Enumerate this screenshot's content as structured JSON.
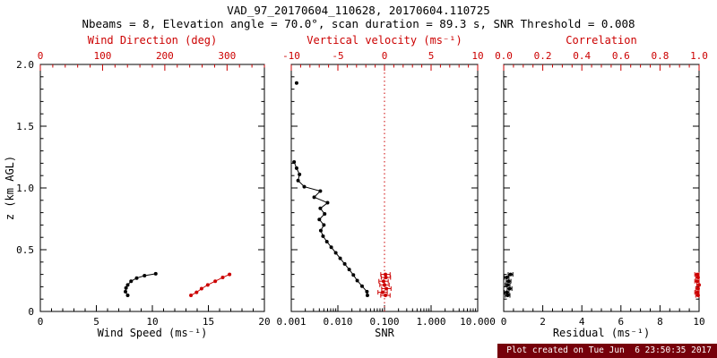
{
  "header": {
    "title": "VAD_97_20170604_110628, 20170604.110725",
    "subtitle": "Nbeams = 8, Elevation angle = 70.0°, scan duration = 89.3 s, SNR Threshold = 0.008"
  },
  "ylabel": "z (km AGL)",
  "footer": {
    "created": "Plot created on Tue Jun  6 23:50:35 2017"
  },
  "colors": {
    "frame": "#000000",
    "accent": "#cc0000",
    "footer_bg": "#76000a",
    "footer_text": "#ffffff"
  },
  "chart_data": [
    {
      "id": "wind",
      "type": "scatter",
      "left_axis": {
        "label": "z (km AGL)",
        "range": [
          0,
          2
        ],
        "ticks": [
          0,
          0.5,
          1.0,
          1.5,
          2.0
        ],
        "tick_labels": [
          "0",
          "0.5",
          "1.0",
          "1.5",
          "2.0"
        ],
        "show_labels": true,
        "minor_step": 0.1
      },
      "bottom_axis": {
        "label": "Wind Speed (ms⁻¹)",
        "range": [
          0,
          20
        ],
        "ticks": [
          0,
          5,
          10,
          15,
          20
        ],
        "tick_labels": [
          "0",
          "5",
          "10",
          "15",
          "20"
        ],
        "color": "#000000",
        "minor_step": 1
      },
      "top_axis": {
        "label": "Wind Direction (deg)",
        "range": [
          0,
          360
        ],
        "ticks": [
          0,
          100,
          200,
          300
        ],
        "tick_labels": [
          "0",
          "100",
          "200",
          "300"
        ],
        "color": "#cc0000",
        "minor_step": 20
      },
      "series": [
        {
          "name": "wind-speed",
          "axis": "bottom",
          "color": "#000000",
          "line": true,
          "points": [
            [
              7.8,
              0.13
            ],
            [
              7.6,
              0.16
            ],
            [
              7.65,
              0.19
            ],
            [
              7.8,
              0.215
            ],
            [
              8.1,
              0.245
            ],
            [
              8.6,
              0.27
            ],
            [
              9.3,
              0.29
            ],
            [
              10.3,
              0.305
            ]
          ]
        },
        {
          "name": "wind-direction",
          "axis": "top",
          "color": "#cc0000",
          "line": true,
          "points": [
            [
              242,
              0.13
            ],
            [
              251,
              0.155
            ],
            [
              259,
              0.185
            ],
            [
              269,
              0.215
            ],
            [
              281,
              0.245
            ],
            [
              293,
              0.275
            ],
            [
              304,
              0.3
            ]
          ]
        }
      ]
    },
    {
      "id": "snr",
      "type": "scatter",
      "left_axis": {
        "range": [
          0,
          2
        ],
        "ticks": [
          0,
          0.5,
          1.0,
          1.5,
          2.0
        ],
        "tick_labels": [
          "0",
          "0.5",
          "1.0",
          "1.5",
          "2.0"
        ],
        "show_labels": false,
        "minor_step": 0.1
      },
      "bottom_axis": {
        "label": "SNR",
        "range": [
          0.001,
          10
        ],
        "scale": "log",
        "ticks": [
          0.001,
          0.01,
          0.1,
          1,
          10
        ],
        "tick_labels": [
          "0.001",
          "0.010",
          "0.100",
          "1.000",
          "10.000"
        ],
        "color": "#000000"
      },
      "top_axis": {
        "label": "Vertical velocity (ms⁻¹)",
        "range": [
          -10,
          10
        ],
        "ticks": [
          -10,
          -5,
          0,
          5,
          10
        ],
        "tick_labels": [
          "-10",
          "-5",
          "0",
          "5",
          "10"
        ],
        "color": "#cc0000",
        "minor_step": 1
      },
      "ref_line": {
        "axis": "top",
        "value": 0,
        "color": "#cc0000",
        "style": "dotted"
      },
      "series": [
        {
          "name": "snr-upper-point",
          "axis": "bottom",
          "color": "#000000",
          "line": false,
          "points": [
            [
              0.0013,
              1.85
            ]
          ]
        },
        {
          "name": "snr-profile",
          "axis": "bottom",
          "color": "#000000",
          "line": true,
          "points": [
            [
              0.00115,
              1.21
            ],
            [
              0.0013,
              1.16
            ],
            [
              0.0015,
              1.11
            ],
            [
              0.0014,
              1.06
            ],
            [
              0.0019,
              1.01
            ],
            [
              0.0042,
              0.975
            ],
            [
              0.0031,
              0.925
            ],
            [
              0.006,
              0.88
            ],
            [
              0.0042,
              0.835
            ],
            [
              0.0052,
              0.79
            ],
            [
              0.004,
              0.745
            ],
            [
              0.005,
              0.7
            ],
            [
              0.0043,
              0.655
            ],
            [
              0.0048,
              0.61
            ],
            [
              0.0058,
              0.565
            ],
            [
              0.0072,
              0.52
            ],
            [
              0.009,
              0.475
            ],
            [
              0.0112,
              0.43
            ],
            [
              0.014,
              0.385
            ],
            [
              0.0175,
              0.34
            ],
            [
              0.0215,
              0.295
            ],
            [
              0.026,
              0.25
            ],
            [
              0.033,
              0.205
            ],
            [
              0.042,
              0.16
            ],
            [
              0.043,
              0.13
            ]
          ]
        },
        {
          "name": "vertical-velocity",
          "axis": "top",
          "color": "#cc0000",
          "line": false,
          "xerr": 0.5,
          "points": [
            [
              0.1,
              0.13
            ],
            [
              -0.2,
              0.155
            ],
            [
              0.2,
              0.185
            ],
            [
              0.0,
              0.215
            ],
            [
              -0.1,
              0.245
            ],
            [
              0.15,
              0.275
            ],
            [
              0.1,
              0.3
            ]
          ]
        }
      ]
    },
    {
      "id": "residual",
      "type": "scatter",
      "left_axis": {
        "range": [
          0,
          2
        ],
        "ticks": [
          0,
          0.5,
          1.0,
          1.5,
          2.0
        ],
        "tick_labels": [
          "0",
          "0.5",
          "1.0",
          "1.5",
          "2.0"
        ],
        "show_labels": false,
        "minor_step": 0.1
      },
      "bottom_axis": {
        "label": "Residual (ms⁻¹)",
        "range": [
          0,
          10
        ],
        "ticks": [
          0,
          2,
          4,
          6,
          8,
          10
        ],
        "tick_labels": [
          "0",
          "2",
          "4",
          "6",
          "8",
          "10"
        ],
        "color": "#000000",
        "minor_step": 0.5
      },
      "top_axis": {
        "label": "Correlation",
        "range": [
          0,
          1
        ],
        "ticks": [
          0,
          0.2,
          0.4,
          0.6,
          0.8,
          1.0
        ],
        "tick_labels": [
          "0.0",
          "0.2",
          "0.4",
          "0.6",
          "0.8",
          "1.0"
        ],
        "color": "#cc0000",
        "minor_step": 0.05
      },
      "series": [
        {
          "name": "residual",
          "axis": "bottom",
          "color": "#000000",
          "line": false,
          "xerr": 0.12,
          "points": [
            [
              0.2,
              0.13
            ],
            [
              0.15,
              0.155
            ],
            [
              0.3,
              0.185
            ],
            [
              0.2,
              0.215
            ],
            [
              0.25,
              0.245
            ],
            [
              0.15,
              0.275
            ],
            [
              0.35,
              0.3
            ]
          ]
        },
        {
          "name": "correlation",
          "axis": "top",
          "color": "#cc0000",
          "line": false,
          "xerr": 0.012,
          "points": [
            [
              0.995,
              0.13
            ],
            [
              0.99,
              0.155
            ],
            [
              0.995,
              0.185
            ],
            [
              1.0,
              0.215
            ],
            [
              0.99,
              0.245
            ],
            [
              0.995,
              0.275
            ],
            [
              0.99,
              0.3
            ]
          ]
        }
      ]
    }
  ]
}
